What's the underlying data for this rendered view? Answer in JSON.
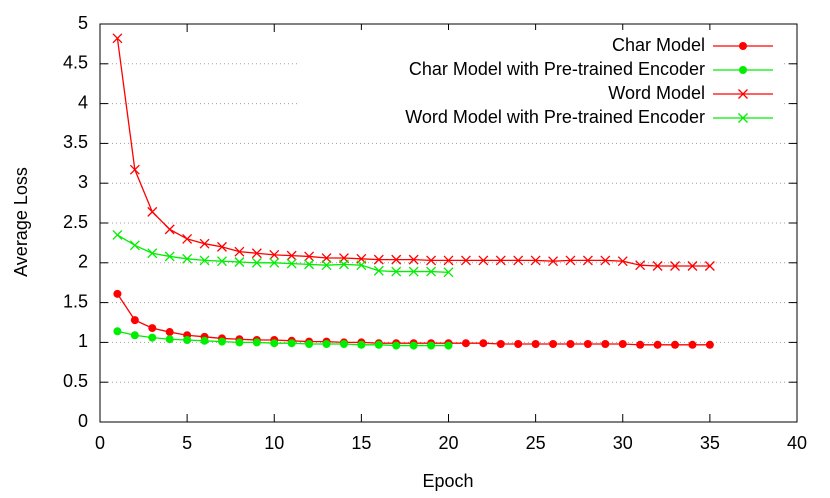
{
  "chart_data": {
    "type": "line",
    "x_label": "Epoch",
    "y_label": "Average Loss",
    "xlim": [
      0,
      40
    ],
    "xticks": [
      0,
      5,
      10,
      15,
      20,
      25,
      30,
      35,
      40
    ],
    "ylim": [
      0,
      5
    ],
    "yticks": [
      0,
      0.5,
      1,
      1.5,
      2,
      2.5,
      3,
      3.5,
      4,
      4.5,
      5
    ],
    "grid": "y",
    "legend": "top-right",
    "series": [
      {
        "name": "Char Model",
        "color": "#ff0000",
        "marker": "circle",
        "x": [
          1,
          2,
          3,
          4,
          5,
          6,
          7,
          8,
          9,
          10,
          11,
          12,
          13,
          14,
          15,
          16,
          17,
          18,
          19,
          20,
          21,
          22,
          23,
          24,
          25,
          26,
          27,
          28,
          29,
          30,
          31,
          32,
          33,
          34,
          35
        ],
        "values": [
          1.61,
          1.28,
          1.18,
          1.13,
          1.09,
          1.07,
          1.05,
          1.04,
          1.03,
          1.03,
          1.02,
          1.01,
          1.01,
          1.0,
          1.0,
          0.99,
          0.99,
          0.99,
          0.99,
          0.99,
          0.99,
          0.99,
          0.98,
          0.98,
          0.98,
          0.98,
          0.98,
          0.98,
          0.98,
          0.98,
          0.97,
          0.97,
          0.97,
          0.97,
          0.97
        ]
      },
      {
        "name": "Char Model with Pre-trained Encoder",
        "color": "#00ee00",
        "marker": "circle",
        "x": [
          1,
          2,
          3,
          4,
          5,
          6,
          7,
          8,
          9,
          10,
          11,
          12,
          13,
          14,
          15,
          16,
          17,
          18,
          19,
          20
        ],
        "values": [
          1.14,
          1.09,
          1.06,
          1.04,
          1.03,
          1.02,
          1.01,
          1.0,
          1.0,
          0.99,
          0.99,
          0.98,
          0.98,
          0.98,
          0.97,
          0.97,
          0.96,
          0.96,
          0.96,
          0.96
        ]
      },
      {
        "name": "Word Model",
        "color": "#ff0000",
        "marker": "cross",
        "x": [
          1,
          2,
          3,
          4,
          5,
          6,
          7,
          8,
          9,
          10,
          11,
          12,
          13,
          14,
          15,
          16,
          17,
          18,
          19,
          20,
          21,
          22,
          23,
          24,
          25,
          26,
          27,
          28,
          29,
          30,
          31,
          32,
          33,
          34,
          35
        ],
        "values": [
          4.82,
          3.17,
          2.64,
          2.42,
          2.3,
          2.24,
          2.2,
          2.14,
          2.12,
          2.1,
          2.09,
          2.08,
          2.06,
          2.06,
          2.05,
          2.04,
          2.04,
          2.04,
          2.03,
          2.03,
          2.03,
          2.03,
          2.03,
          2.03,
          2.03,
          2.02,
          2.03,
          2.03,
          2.03,
          2.02,
          1.97,
          1.96,
          1.96,
          1.96,
          1.96
        ]
      },
      {
        "name": "Word Model with Pre-trained Encoder",
        "color": "#00ee00",
        "marker": "cross",
        "x": [
          1,
          2,
          3,
          4,
          5,
          6,
          7,
          8,
          9,
          10,
          11,
          12,
          13,
          14,
          15,
          16,
          17,
          18,
          19,
          20
        ],
        "values": [
          2.35,
          2.22,
          2.12,
          2.08,
          2.05,
          2.03,
          2.02,
          2.01,
          2.0,
          2.0,
          1.99,
          1.98,
          1.97,
          1.98,
          1.97,
          1.9,
          1.89,
          1.89,
          1.89,
          1.88
        ]
      }
    ]
  }
}
